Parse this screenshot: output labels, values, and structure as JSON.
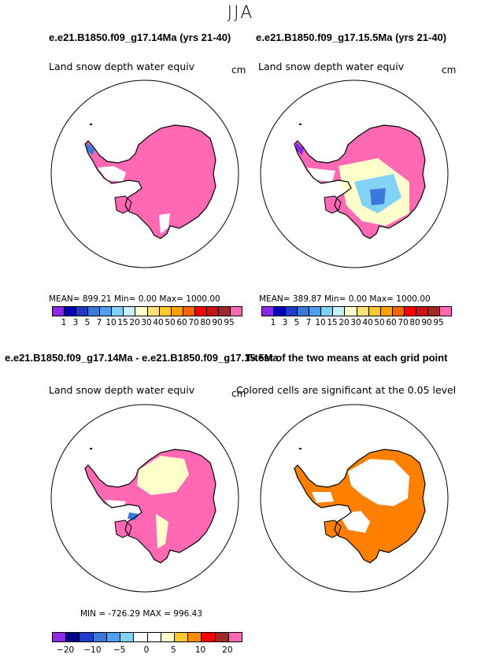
{
  "season": "JJA",
  "panel1": {
    "title": "e.e21.B1850.f09_g17.14Ma (yrs 21-40)",
    "subtitle": "Land snow depth water equiv",
    "units": "cm",
    "stats": "MEAN=  899.21   Min=     0.00   Max=  1000.00"
  },
  "panel2": {
    "title": "e.e21.B1850.f09_g17.15.5Ma (yrs 21-40)",
    "subtitle": "Land snow depth water equiv",
    "units": "cm",
    "stats": "MEAN=  389.87   Min=     0.00   Max=  1000.00"
  },
  "panel3": {
    "title": "e.e21.B1850.f09_g17.14Ma - e.e21.B1850.f09_g17.15.5Ma",
    "subtitle": "Land snow depth water equiv",
    "units": "cm",
    "stats": "MIN = -726.29  MAX = 996.43"
  },
  "panel4": {
    "title": "T-test of the two means at each grid point",
    "subtitle": "Colored cells are significant at the 0.05 level"
  },
  "colorbar_top": {
    "colors": [
      "#8a2be2",
      "#0000b4",
      "#1e3cc8",
      "#3c78dc",
      "#50a0f0",
      "#82d2f5",
      "#c8f0fa",
      "#ffffcc",
      "#ffe178",
      "#ffc832",
      "#ffa000",
      "#ff6400",
      "#ff0000",
      "#c81414",
      "#a02828",
      "#ff69b4"
    ],
    "labels": [
      "1",
      "3",
      "5",
      "7",
      "10",
      "15",
      "20",
      "30",
      "40",
      "50",
      "60",
      "70",
      "80",
      "90",
      "95"
    ]
  },
  "colorbar_diff": {
    "colors": [
      "#8a2be2",
      "#00008b",
      "#1e3cc8",
      "#3c78dc",
      "#50a0f0",
      "#82d2f5",
      "#ffffff",
      "#ffffff",
      "#ffffcc",
      "#ffc832",
      "#ff8c00",
      "#ff0000",
      "#a02828",
      "#ff69b4"
    ],
    "labels": [
      "−20",
      "−10",
      "−5",
      "0",
      "5",
      "10",
      "20"
    ]
  },
  "map_colors": {
    "pink": "#ff69b4",
    "white": "#ffffff",
    "yellow": "#ffffcc",
    "lightblue": "#82d2f5",
    "blue": "#3c78dc",
    "orange": "#ff7f00",
    "purple": "#8a2be2"
  }
}
